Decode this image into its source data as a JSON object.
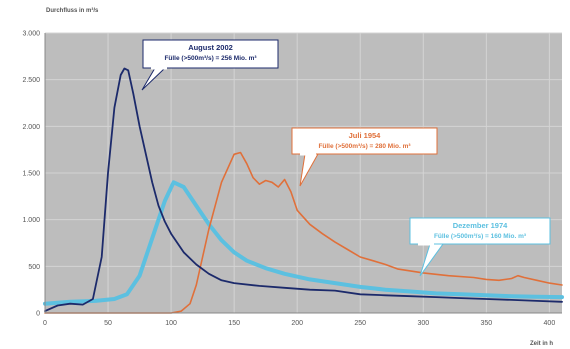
{
  "chart_data": {
    "type": "line",
    "ylabel": "Durchfluss in m³/s",
    "xlabel": "Zeit in h",
    "xlim": [
      0,
      410
    ],
    "ylim": [
      0,
      3000
    ],
    "xticks": [
      0,
      50,
      100,
      150,
      200,
      250,
      300,
      350,
      400
    ],
    "yticks": [
      0,
      500,
      1000,
      1500,
      2000,
      2500,
      3000
    ],
    "ytick_labels": [
      "0",
      "500",
      "1.000",
      "1.500",
      "2.000",
      "2.500",
      "3.000"
    ],
    "grid": true,
    "plot_background": "#bdbdbd",
    "series": [
      {
        "name": "August 2002",
        "color": "#1c2a6b",
        "x": [
          0,
          10,
          20,
          30,
          38,
          45,
          50,
          55,
          60,
          63,
          66,
          70,
          75,
          80,
          85,
          90,
          95,
          100,
          110,
          120,
          130,
          140,
          150,
          170,
          190,
          210,
          230,
          250,
          270,
          290,
          310,
          330,
          350,
          370,
          390,
          410
        ],
        "y": [
          20,
          80,
          100,
          90,
          150,
          600,
          1500,
          2200,
          2550,
          2620,
          2600,
          2350,
          2000,
          1700,
          1400,
          1150,
          980,
          850,
          650,
          520,
          420,
          350,
          320,
          290,
          270,
          250,
          240,
          200,
          190,
          180,
          170,
          160,
          150,
          140,
          130,
          120
        ]
      },
      {
        "name": "Juli 1954",
        "color": "#e0703a",
        "x": [
          0,
          50,
          100,
          108,
          115,
          120,
          125,
          130,
          135,
          140,
          145,
          150,
          155,
          160,
          165,
          170,
          175,
          180,
          185,
          190,
          195,
          200,
          210,
          220,
          230,
          240,
          250,
          260,
          270,
          280,
          300,
          320,
          340,
          350,
          360,
          370,
          375,
          380,
          390,
          400,
          410
        ],
        "y": [
          0,
          0,
          0,
          20,
          100,
          300,
          600,
          900,
          1150,
          1400,
          1550,
          1700,
          1720,
          1600,
          1450,
          1380,
          1420,
          1400,
          1350,
          1430,
          1300,
          1100,
          950,
          850,
          760,
          680,
          600,
          560,
          520,
          470,
          430,
          400,
          380,
          360,
          350,
          370,
          400,
          380,
          350,
          320,
          300
        ]
      },
      {
        "name": "Dezember 1974",
        "color": "#5cc0e0",
        "x": [
          0,
          20,
          40,
          55,
          65,
          75,
          85,
          95,
          102,
          110,
          120,
          130,
          140,
          150,
          160,
          175,
          190,
          210,
          230,
          250,
          270,
          290,
          310,
          330,
          350,
          370,
          390,
          410
        ],
        "y": [
          100,
          120,
          130,
          150,
          200,
          400,
          800,
          1200,
          1400,
          1350,
          1150,
          950,
          780,
          650,
          560,
          480,
          420,
          360,
          320,
          280,
          250,
          230,
          210,
          200,
          190,
          180,
          175,
          170
        ]
      }
    ],
    "annotations": [
      {
        "series": "August 2002",
        "title": "August 2002",
        "subtitle": "Fülle (>500m³/s) = 256 Mio. m³",
        "color": "#1c2a6b",
        "border": "#1c2a6b"
      },
      {
        "series": "Juli 1954",
        "title": "Juli 1954",
        "subtitle": "Fülle (>500m³/s) = 280 Mio. m³",
        "color": "#e0703a",
        "border": "#e0703a"
      },
      {
        "series": "Dezember 1974",
        "title": "Dezember 1974",
        "subtitle": "Fülle (>500m³/s) = 160 Mio. m³",
        "color": "#5cc0e0",
        "border": "#5cc0e0"
      }
    ]
  }
}
